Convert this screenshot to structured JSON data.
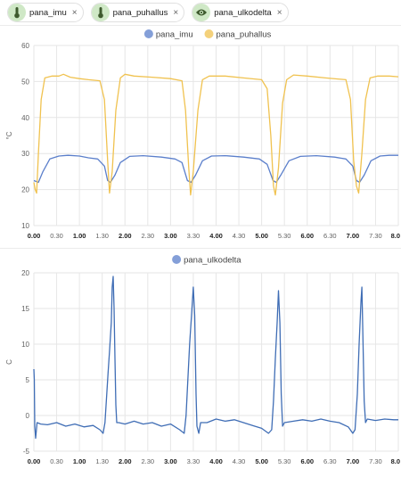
{
  "chips": [
    {
      "label": "pana_imu",
      "icon": "thermometer-icon"
    },
    {
      "label": "pana_puhallus",
      "icon": "thermometer-icon"
    },
    {
      "label": "pana_ulkodelta",
      "icon": "eye-icon"
    }
  ],
  "close_glyph": "×",
  "colors": {
    "imu": "#5b7fcb",
    "puhallus": "#f0c24f",
    "ulkodelta": "#3f6db5",
    "chip_bg": "#cfe8c6",
    "grid": "#e6e6e6"
  },
  "chart_data": [
    {
      "type": "line",
      "ylabel": "°C",
      "ylim": [
        10,
        60
      ],
      "yticks": [
        10,
        20,
        30,
        40,
        50,
        60
      ],
      "xlim": [
        0,
        8
      ],
      "xtick_labels": [
        "0.00",
        "0.30",
        "1.00",
        "1.30",
        "2.00",
        "2.30",
        "3.00",
        "3.30",
        "4.00",
        "4.30",
        "5.00",
        "5.30",
        "6.00",
        "6.30",
        "7.00",
        "7.30",
        "8.0"
      ],
      "legend": [
        {
          "name": "pana_imu",
          "color": "#5b7fcb"
        },
        {
          "name": "pana_puhallus",
          "color": "#f0c24f"
        }
      ],
      "series": [
        {
          "name": "pana_imu",
          "color": "#5b7fcb",
          "points": [
            [
              0.0,
              22.5
            ],
            [
              0.1,
              22.0
            ],
            [
              0.2,
              25.0
            ],
            [
              0.35,
              28.5
            ],
            [
              0.55,
              29.3
            ],
            [
              0.75,
              29.5
            ],
            [
              1.0,
              29.3
            ],
            [
              1.2,
              28.8
            ],
            [
              1.4,
              28.5
            ],
            [
              1.55,
              26.5
            ],
            [
              1.62,
              22.5
            ],
            [
              1.68,
              22.0
            ],
            [
              1.78,
              24.0
            ],
            [
              1.9,
              27.5
            ],
            [
              2.1,
              29.2
            ],
            [
              2.4,
              29.4
            ],
            [
              2.8,
              29.0
            ],
            [
              3.1,
              28.5
            ],
            [
              3.25,
              27.5
            ],
            [
              3.37,
              22.5
            ],
            [
              3.45,
              22.0
            ],
            [
              3.55,
              24.0
            ],
            [
              3.7,
              28.0
            ],
            [
              3.9,
              29.3
            ],
            [
              4.2,
              29.4
            ],
            [
              4.6,
              29.0
            ],
            [
              4.95,
              28.5
            ],
            [
              5.12,
              27.0
            ],
            [
              5.25,
              22.5
            ],
            [
              5.32,
              22.0
            ],
            [
              5.42,
              24.0
            ],
            [
              5.6,
              28.0
            ],
            [
              5.85,
              29.2
            ],
            [
              6.2,
              29.4
            ],
            [
              6.6,
              29.0
            ],
            [
              6.85,
              28.5
            ],
            [
              7.0,
              26.5
            ],
            [
              7.08,
              22.5
            ],
            [
              7.15,
              22.0
            ],
            [
              7.25,
              24.0
            ],
            [
              7.4,
              28.0
            ],
            [
              7.6,
              29.3
            ],
            [
              7.8,
              29.5
            ],
            [
              8.0,
              29.5
            ]
          ]
        },
        {
          "name": "pana_puhallus",
          "color": "#f0c24f",
          "points": [
            [
              0.0,
              22.0
            ],
            [
              0.03,
              20.0
            ],
            [
              0.06,
              19.0
            ],
            [
              0.1,
              30.0
            ],
            [
              0.16,
              45.0
            ],
            [
              0.24,
              51.0
            ],
            [
              0.4,
              51.5
            ],
            [
              0.55,
              51.5
            ],
            [
              0.65,
              52.0
            ],
            [
              0.8,
              51.2
            ],
            [
              1.0,
              50.8
            ],
            [
              1.2,
              50.5
            ],
            [
              1.45,
              50.2
            ],
            [
              1.55,
              45.0
            ],
            [
              1.62,
              28.0
            ],
            [
              1.66,
              19.0
            ],
            [
              1.72,
              25.0
            ],
            [
              1.8,
              42.0
            ],
            [
              1.9,
              51.0
            ],
            [
              2.0,
              52.0
            ],
            [
              2.2,
              51.5
            ],
            [
              2.6,
              51.2
            ],
            [
              3.0,
              50.8
            ],
            [
              3.25,
              50.2
            ],
            [
              3.33,
              42.0
            ],
            [
              3.4,
              26.0
            ],
            [
              3.44,
              18.5
            ],
            [
              3.5,
              25.0
            ],
            [
              3.6,
              42.0
            ],
            [
              3.7,
              50.5
            ],
            [
              3.85,
              51.5
            ],
            [
              4.2,
              51.5
            ],
            [
              4.6,
              51.0
            ],
            [
              5.0,
              50.5
            ],
            [
              5.12,
              48.0
            ],
            [
              5.2,
              35.0
            ],
            [
              5.26,
              21.0
            ],
            [
              5.3,
              18.5
            ],
            [
              5.37,
              26.0
            ],
            [
              5.46,
              44.0
            ],
            [
              5.55,
              50.5
            ],
            [
              5.7,
              51.8
            ],
            [
              6.0,
              51.5
            ],
            [
              6.4,
              51.0
            ],
            [
              6.85,
              50.5
            ],
            [
              6.95,
              45.0
            ],
            [
              7.02,
              28.0
            ],
            [
              7.08,
              21.0
            ],
            [
              7.13,
              19.0
            ],
            [
              7.2,
              30.0
            ],
            [
              7.28,
              45.0
            ],
            [
              7.38,
              51.0
            ],
            [
              7.55,
              51.5
            ],
            [
              7.8,
              51.5
            ],
            [
              8.0,
              51.3
            ]
          ]
        }
      ]
    },
    {
      "type": "line",
      "ylabel": "C",
      "ylim": [
        -5,
        20
      ],
      "yticks": [
        -5,
        0,
        5,
        10,
        15,
        20
      ],
      "xlim": [
        0,
        8
      ],
      "xtick_labels": [
        "0.00",
        "0.30",
        "1.00",
        "1.30",
        "2.00",
        "2.30",
        "3.00",
        "3.30",
        "4.00",
        "4.30",
        "5.00",
        "5.30",
        "6.00",
        "6.30",
        "7.00",
        "7.30",
        "8.0"
      ],
      "legend": [
        {
          "name": "pana_ulkodelta",
          "color": "#5b7fcb"
        }
      ],
      "series": [
        {
          "name": "pana_ulkodelta",
          "color": "#3f6db5",
          "points": [
            [
              0.0,
              6.5
            ],
            [
              0.01,
              5.0
            ],
            [
              0.02,
              -1.5
            ],
            [
              0.04,
              -3.2
            ],
            [
              0.07,
              -1.0
            ],
            [
              0.15,
              -1.2
            ],
            [
              0.3,
              -1.3
            ],
            [
              0.5,
              -1.0
            ],
            [
              0.7,
              -1.5
            ],
            [
              0.9,
              -1.2
            ],
            [
              1.1,
              -1.6
            ],
            [
              1.3,
              -1.4
            ],
            [
              1.45,
              -2.0
            ],
            [
              1.52,
              -2.5
            ],
            [
              1.56,
              -1.0
            ],
            [
              1.6,
              3.0
            ],
            [
              1.63,
              6.0
            ],
            [
              1.66,
              9.0
            ],
            [
              1.7,
              13.0
            ],
            [
              1.72,
              18.0
            ],
            [
              1.74,
              19.5
            ],
            [
              1.76,
              15.0
            ],
            [
              1.78,
              8.0
            ],
            [
              1.8,
              1.5
            ],
            [
              1.82,
              -1.0
            ],
            [
              1.86,
              -1.0
            ],
            [
              2.0,
              -1.2
            ],
            [
              2.2,
              -0.8
            ],
            [
              2.4,
              -1.2
            ],
            [
              2.6,
              -1.0
            ],
            [
              2.8,
              -1.5
            ],
            [
              3.0,
              -1.2
            ],
            [
              3.2,
              -2.0
            ],
            [
              3.3,
              -2.5
            ],
            [
              3.34,
              0.0
            ],
            [
              3.38,
              5.0
            ],
            [
              3.42,
              10.0
            ],
            [
              3.46,
              14.0
            ],
            [
              3.5,
              18.0
            ],
            [
              3.53,
              14.0
            ],
            [
              3.56,
              3.0
            ],
            [
              3.58,
              -1.5
            ],
            [
              3.62,
              -2.5
            ],
            [
              3.66,
              -1.0
            ],
            [
              3.8,
              -1.0
            ],
            [
              4.0,
              -0.5
            ],
            [
              4.2,
              -0.8
            ],
            [
              4.4,
              -0.6
            ],
            [
              4.6,
              -1.0
            ],
            [
              4.8,
              -1.4
            ],
            [
              5.0,
              -1.8
            ],
            [
              5.15,
              -2.5
            ],
            [
              5.22,
              -2.0
            ],
            [
              5.26,
              2.0
            ],
            [
              5.3,
              8.0
            ],
            [
              5.34,
              13.0
            ],
            [
              5.37,
              17.5
            ],
            [
              5.4,
              13.0
            ],
            [
              5.43,
              3.0
            ],
            [
              5.46,
              -1.5
            ],
            [
              5.5,
              -1.0
            ],
            [
              5.7,
              -0.8
            ],
            [
              5.9,
              -0.6
            ],
            [
              6.1,
              -0.8
            ],
            [
              6.3,
              -0.5
            ],
            [
              6.5,
              -0.8
            ],
            [
              6.7,
              -1.0
            ],
            [
              6.9,
              -1.6
            ],
            [
              7.0,
              -2.5
            ],
            [
              7.05,
              -2.0
            ],
            [
              7.1,
              3.0
            ],
            [
              7.14,
              10.0
            ],
            [
              7.18,
              16.0
            ],
            [
              7.2,
              18.0
            ],
            [
              7.22,
              12.0
            ],
            [
              7.25,
              2.0
            ],
            [
              7.28,
              -1.0
            ],
            [
              7.32,
              -0.5
            ],
            [
              7.5,
              -0.7
            ],
            [
              7.7,
              -0.5
            ],
            [
              7.9,
              -0.6
            ],
            [
              8.0,
              -0.6
            ]
          ]
        }
      ]
    }
  ]
}
